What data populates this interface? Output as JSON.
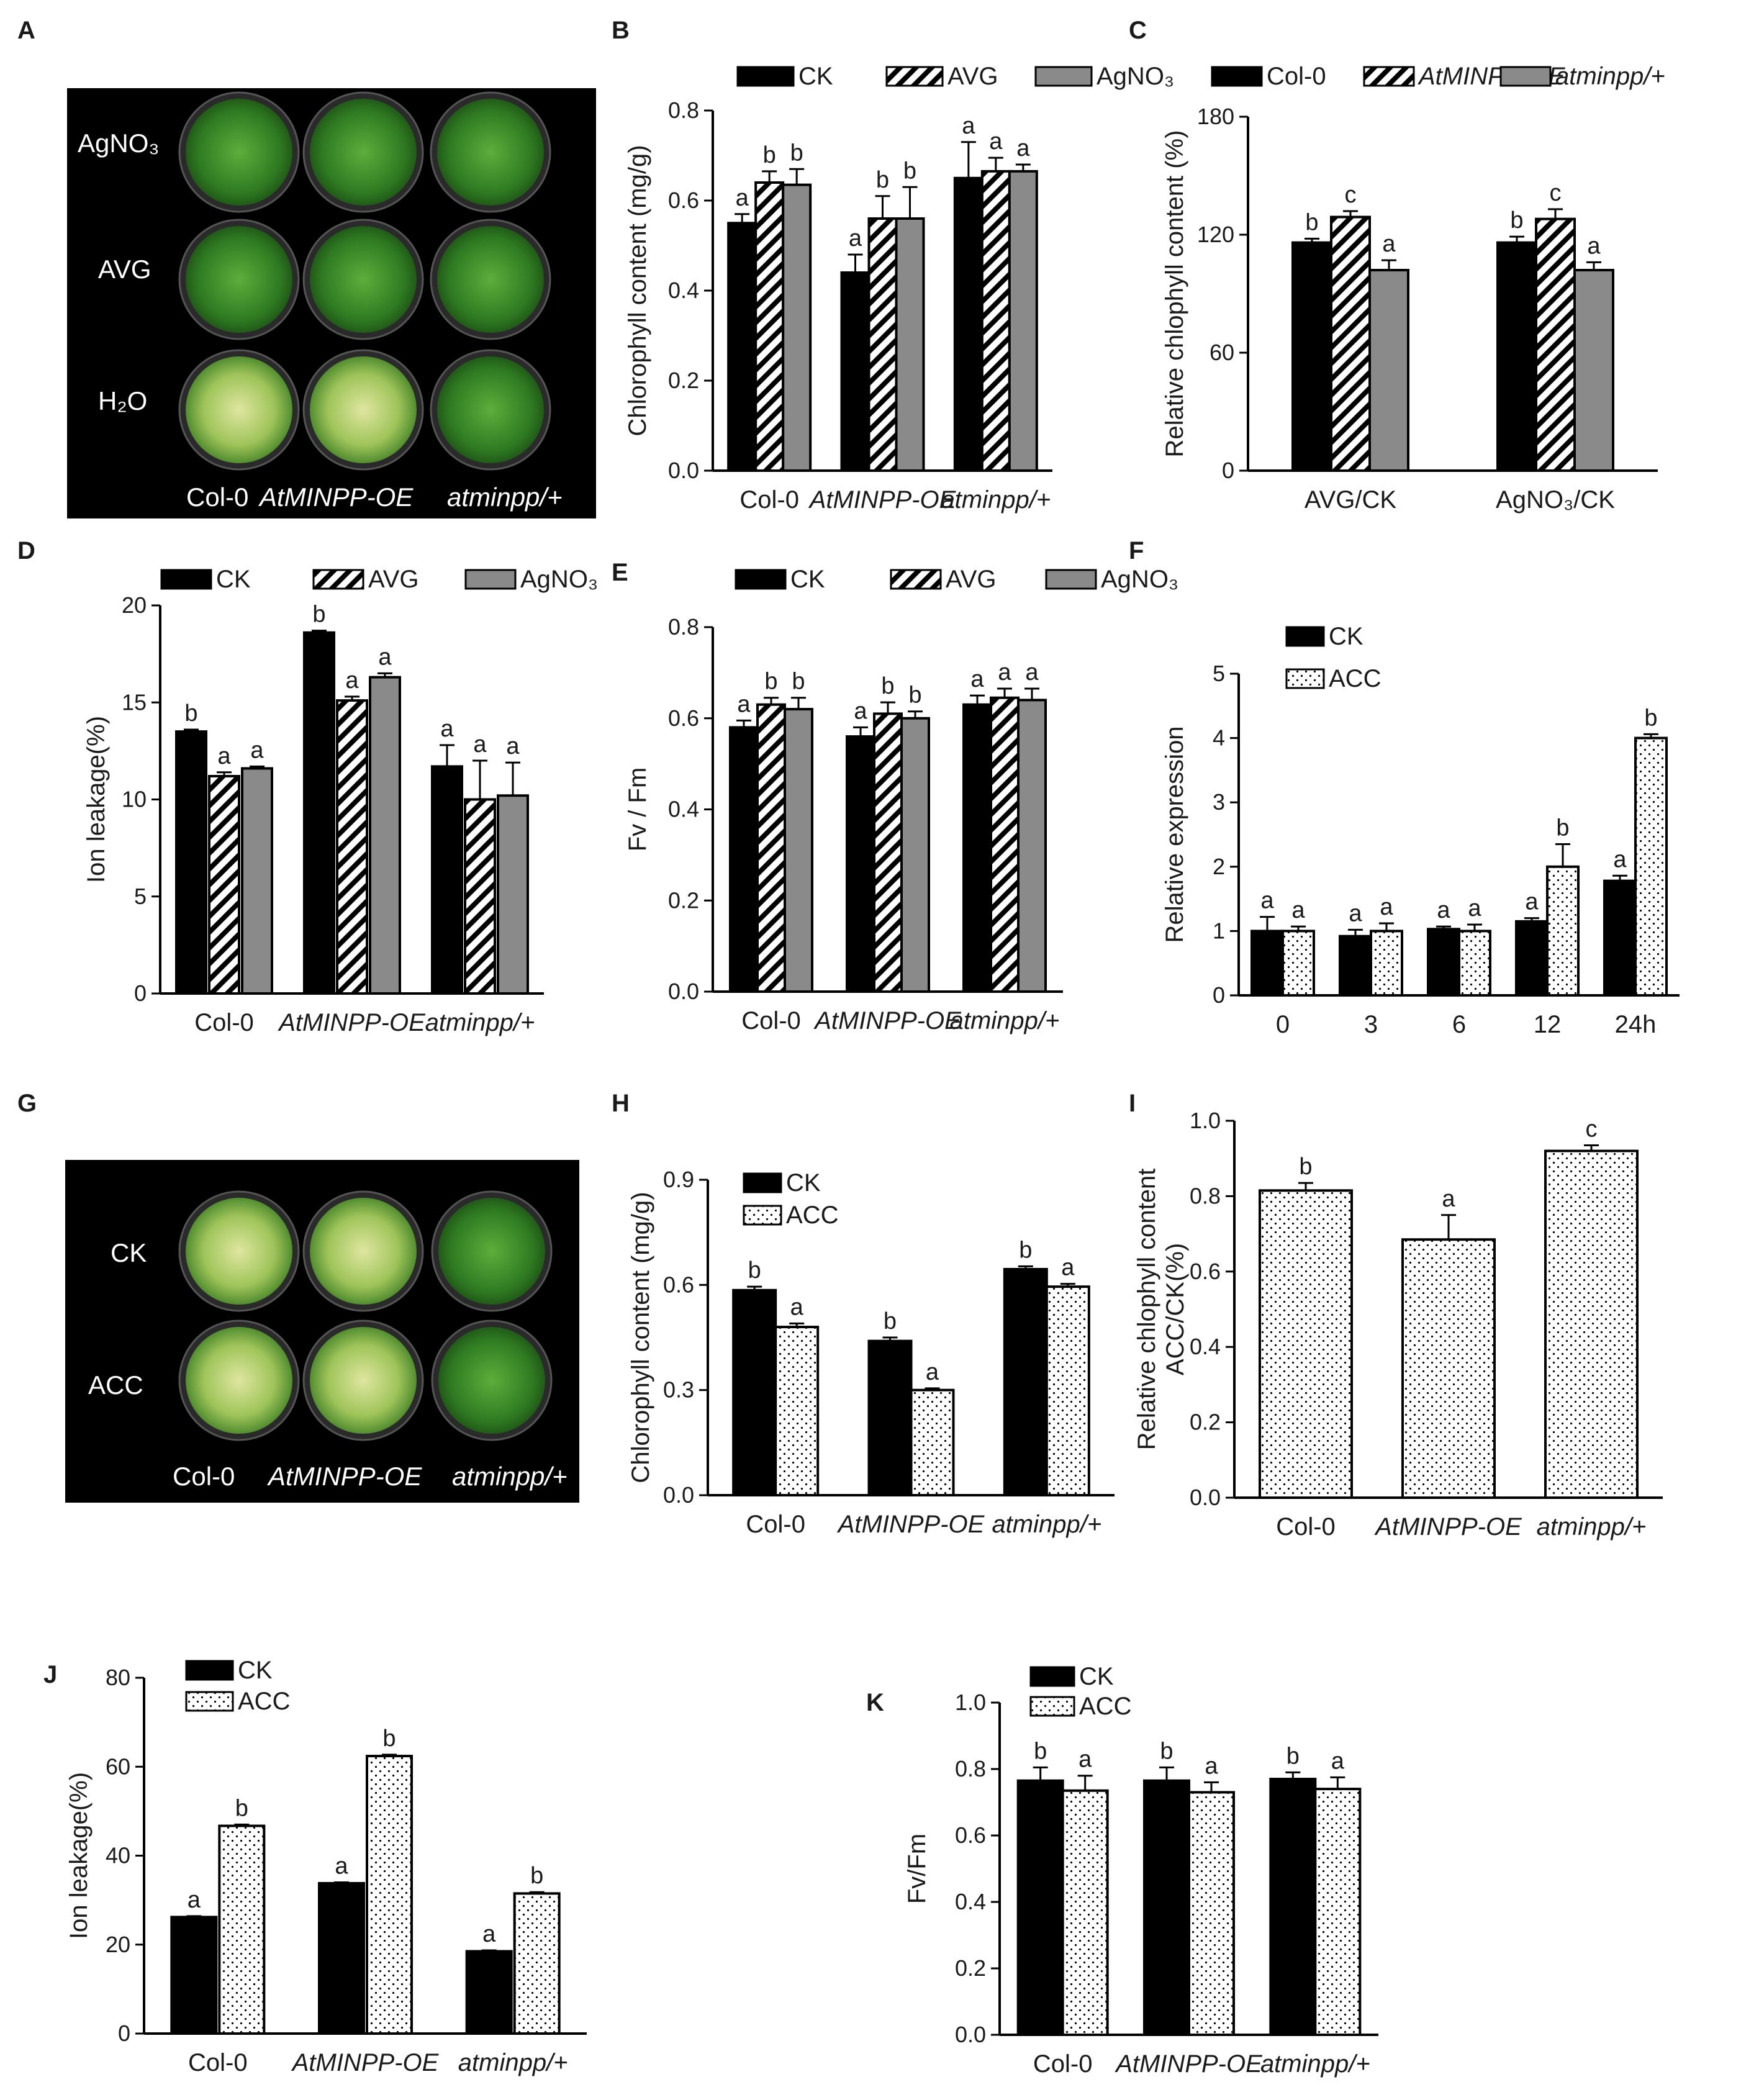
{
  "panel_letters": [
    "A",
    "B",
    "C",
    "D",
    "E",
    "F",
    "G",
    "H",
    "I",
    "J",
    "K"
  ],
  "colors": {
    "black": "#000000",
    "gray": "#8a8a8a",
    "white": "#ffffff",
    "plate_dark": "#1b4d14",
    "plate_mid": "#3f8a2a",
    "plate_light": "#b8d07a"
  },
  "icons": {
    "hatch": "diagonal-stripes",
    "dots": "stipple-dots"
  },
  "photos": [
    {
      "panel": "A",
      "row_labels": [
        "AgNO₃",
        "AVG",
        "H₂O"
      ],
      "col_labels": [
        "Col-0",
        "AtMINPP-OE",
        "atminpp/+"
      ]
    },
    {
      "panel": "G",
      "row_labels": [
        "CK",
        "ACC"
      ],
      "col_labels": [
        "Col-0",
        "AtMINPP-OE",
        "atminpp/+"
      ]
    }
  ],
  "chart_data": [
    {
      "panel": "B",
      "type": "bar",
      "ylabel": "Chlorophyll content (mg/g)",
      "ylim": [
        0,
        0.8
      ],
      "yticks": [
        "0.0",
        "0.2",
        "0.4",
        "0.6",
        "0.8"
      ],
      "categories": [
        "Col-0",
        "AtMINPP-OE",
        "atminpp/+"
      ],
      "series": [
        {
          "name": "CK",
          "pattern": "black",
          "values": [
            0.55,
            0.44,
            0.65
          ],
          "err": [
            0.02,
            0.04,
            0.08
          ],
          "sig": [
            "a",
            "a",
            "a"
          ]
        },
        {
          "name": "AVG",
          "pattern": "hatch",
          "values": [
            0.64,
            0.56,
            0.665
          ],
          "err": [
            0.025,
            0.05,
            0.03
          ],
          "sig": [
            "b",
            "b",
            "a"
          ]
        },
        {
          "name": "AgNO₃",
          "pattern": "gray",
          "values": [
            0.635,
            0.56,
            0.665
          ],
          "err": [
            0.035,
            0.07,
            0.015
          ],
          "sig": [
            "b",
            "b",
            "a"
          ]
        }
      ]
    },
    {
      "panel": "C",
      "type": "bar",
      "ylabel": "Relative chlophyll content (%)",
      "ylim": [
        0,
        180
      ],
      "yticks": [
        "0",
        "60",
        "120",
        "180"
      ],
      "categories": [
        "AVG/CK",
        "AgNO₃/CK"
      ],
      "series": [
        {
          "name": "Col-0",
          "pattern": "black",
          "values": [
            116,
            116
          ],
          "err": [
            2,
            3
          ],
          "sig": [
            "b",
            "b"
          ]
        },
        {
          "name": "AtMINPP-OE",
          "pattern": "hatch",
          "values": [
            129,
            128
          ],
          "err": [
            3,
            5
          ],
          "sig": [
            "c",
            "c"
          ]
        },
        {
          "name": "atminpp/+",
          "pattern": "gray",
          "values": [
            102,
            102
          ],
          "err": [
            5,
            4
          ],
          "sig": [
            "a",
            "a"
          ]
        }
      ]
    },
    {
      "panel": "D",
      "type": "bar",
      "ylabel": "Ion leakage(%)",
      "ylim": [
        0,
        20
      ],
      "yticks": [
        "0",
        "5",
        "10",
        "15",
        "20"
      ],
      "categories": [
        "Col-0",
        "AtMINPP-OE",
        "atminpp/+"
      ],
      "series": [
        {
          "name": "CK",
          "pattern": "black",
          "values": [
            13.5,
            18.6,
            11.7
          ],
          "err": [
            0.1,
            0.1,
            1.1
          ],
          "sig": [
            "b",
            "b",
            "a"
          ]
        },
        {
          "name": "AVG",
          "pattern": "hatch",
          "values": [
            11.2,
            15.1,
            10.0
          ],
          "err": [
            0.2,
            0.2,
            2.0
          ],
          "sig": [
            "a",
            "a",
            "a"
          ]
        },
        {
          "name": "AgNO₃",
          "pattern": "gray",
          "values": [
            11.6,
            16.3,
            10.2
          ],
          "err": [
            0.1,
            0.2,
            1.7
          ],
          "sig": [
            "a",
            "a",
            "a"
          ]
        }
      ]
    },
    {
      "panel": "E",
      "type": "bar",
      "ylabel": "Fv / Fm",
      "ylim": [
        0,
        0.8
      ],
      "yticks": [
        "0.0",
        "0.2",
        "0.4",
        "0.6",
        "0.8"
      ],
      "categories": [
        "Col-0",
        "AtMINPP-OE",
        "atminpp/+"
      ],
      "series": [
        {
          "name": "CK",
          "pattern": "black",
          "values": [
            0.58,
            0.56,
            0.63
          ],
          "err": [
            0.015,
            0.02,
            0.02
          ],
          "sig": [
            "a",
            "a",
            "a"
          ]
        },
        {
          "name": "AVG",
          "pattern": "hatch",
          "values": [
            0.63,
            0.61,
            0.645
          ],
          "err": [
            0.015,
            0.025,
            0.02
          ],
          "sig": [
            "b",
            "b",
            "a"
          ]
        },
        {
          "name": "AgNO₃",
          "pattern": "gray",
          "values": [
            0.62,
            0.6,
            0.64
          ],
          "err": [
            0.025,
            0.015,
            0.025
          ],
          "sig": [
            "b",
            "b",
            "a"
          ]
        }
      ]
    },
    {
      "panel": "F",
      "type": "bar",
      "ylabel": "Relative expression",
      "ylim": [
        0,
        5
      ],
      "yticks": [
        "0",
        "1",
        "2",
        "3",
        "4",
        "5"
      ],
      "categories": [
        "0",
        "3",
        "6",
        "12",
        "24h"
      ],
      "series": [
        {
          "name": "CK",
          "pattern": "black",
          "values": [
            1.0,
            0.92,
            1.03,
            1.15,
            1.78
          ],
          "err": [
            0.22,
            0.1,
            0.04,
            0.05,
            0.08
          ],
          "sig": [
            "a",
            "a",
            "a",
            "a",
            "a"
          ]
        },
        {
          "name": "ACC",
          "pattern": "dots",
          "values": [
            1.0,
            1.0,
            1.0,
            2.0,
            4.0
          ],
          "err": [
            0.07,
            0.12,
            0.1,
            0.35,
            0.06
          ],
          "sig": [
            "a",
            "a",
            "a",
            "b",
            "b"
          ]
        }
      ]
    },
    {
      "panel": "H",
      "type": "bar",
      "ylabel": "Chlorophyll content (mg/g)",
      "ylim": [
        0,
        0.9
      ],
      "yticks": [
        "0.0",
        "0.3",
        "0.6",
        "0.9"
      ],
      "categories": [
        "Col-0",
        "AtMINPP-OE",
        "atminpp/+"
      ],
      "series": [
        {
          "name": "CK",
          "pattern": "black",
          "values": [
            0.585,
            0.44,
            0.645
          ],
          "err": [
            0.01,
            0.01,
            0.008
          ],
          "sig": [
            "b",
            "b",
            "b"
          ]
        },
        {
          "name": "ACC",
          "pattern": "dots",
          "values": [
            0.48,
            0.3,
            0.595
          ],
          "err": [
            0.01,
            0.005,
            0.008
          ],
          "sig": [
            "a",
            "a",
            "a"
          ]
        }
      ]
    },
    {
      "panel": "I",
      "type": "bar",
      "ylabel": "Relative chlophyll content ACC/CK(%)",
      "ylim": [
        0,
        1.0
      ],
      "yticks": [
        "0.0",
        "0.2",
        "0.4",
        "0.6",
        "0.8",
        "1.0"
      ],
      "categories": [
        "Col-0",
        "AtMINPP-OE",
        "atminpp/+"
      ],
      "series": [
        {
          "name": "ACC/CK",
          "pattern": "dots",
          "values": [
            0.815,
            0.685,
            0.92
          ],
          "err": [
            0.02,
            0.065,
            0.015
          ],
          "sig": [
            "b",
            "a",
            "c"
          ]
        }
      ]
    },
    {
      "panel": "J",
      "type": "bar",
      "ylabel": "Ion leakage(%)",
      "ylim": [
        0,
        80
      ],
      "yticks": [
        "0",
        "20",
        "40",
        "60",
        "80"
      ],
      "categories": [
        "Col-0",
        "AtMINPP-OE",
        "atminpp/+"
      ],
      "series": [
        {
          "name": "CK",
          "pattern": "black",
          "values": [
            26.2,
            33.8,
            18.5
          ],
          "err": [
            0.2,
            0.2,
            0.2
          ],
          "sig": [
            "a",
            "a",
            "a"
          ]
        },
        {
          "name": "ACC",
          "pattern": "dots",
          "values": [
            46.7,
            62.4,
            31.5
          ],
          "err": [
            0.3,
            0.3,
            0.3
          ],
          "sig": [
            "b",
            "b",
            "b"
          ]
        }
      ]
    },
    {
      "panel": "K",
      "type": "bar",
      "ylabel": "Fv/Fm",
      "ylim": [
        0,
        1.0
      ],
      "yticks": [
        "0.0",
        "0.2",
        "0.4",
        "0.6",
        "0.8",
        "1.0"
      ],
      "categories": [
        "Col-0",
        "AtMINPP-OE",
        "atminpp/+"
      ],
      "series": [
        {
          "name": "CK",
          "pattern": "black",
          "values": [
            0.765,
            0.765,
            0.77
          ],
          "err": [
            0.04,
            0.04,
            0.02
          ],
          "sig": [
            "b",
            "b",
            "b"
          ]
        },
        {
          "name": "ACC",
          "pattern": "dots",
          "values": [
            0.735,
            0.73,
            0.74
          ],
          "err": [
            0.045,
            0.03,
            0.035
          ],
          "sig": [
            "a",
            "a",
            "a"
          ]
        }
      ]
    }
  ]
}
